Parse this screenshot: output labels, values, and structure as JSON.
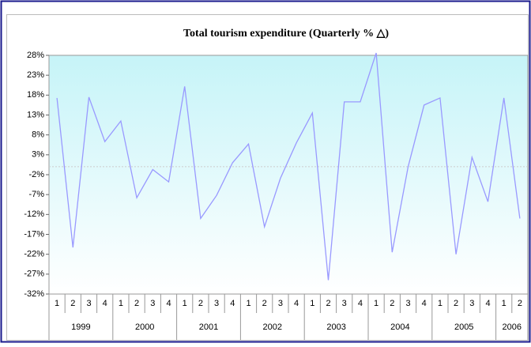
{
  "chart_data": {
    "type": "line",
    "title": "Total tourism expenditure (Quarterly % △)",
    "years": [
      {
        "name": "1999",
        "quarters": [
          "1",
          "2",
          "3",
          "4"
        ]
      },
      {
        "name": "2000",
        "quarters": [
          "1",
          "2",
          "3",
          "4"
        ]
      },
      {
        "name": "2001",
        "quarters": [
          "1",
          "2",
          "3",
          "4"
        ]
      },
      {
        "name": "2002",
        "quarters": [
          "1",
          "2",
          "3",
          "4"
        ]
      },
      {
        "name": "2003",
        "quarters": [
          "1",
          "2",
          "3",
          "4"
        ]
      },
      {
        "name": "2004",
        "quarters": [
          "1",
          "2",
          "3",
          "4"
        ]
      },
      {
        "name": "2005",
        "quarters": [
          "1",
          "2",
          "3",
          "4"
        ]
      },
      {
        "name": "2006",
        "quarters": [
          "1",
          "2"
        ]
      }
    ],
    "values": [
      17.3,
      -20.3,
      17.5,
      6.3,
      11.5,
      -7.8,
      -0.7,
      -3.8,
      20.2,
      -13,
      -7.2,
      1,
      5.7,
      -15.1,
      -2.9,
      6,
      13.5,
      -28.5,
      16.3,
      16.3,
      28.6,
      -21.5,
      0,
      15.5,
      17.3,
      -22,
      2.4,
      -8.8,
      17.3,
      -13
    ],
    "color": "#9999ff",
    "ylim": [
      -32,
      28
    ],
    "yticks": [
      {
        "value": 28,
        "label": "28%"
      },
      {
        "value": 23,
        "label": "23%"
      },
      {
        "value": 18,
        "label": "18%"
      },
      {
        "value": 13,
        "label": "13%"
      },
      {
        "value": 8,
        "label": "8%"
      },
      {
        "value": 3,
        "label": "3%"
      },
      {
        "value": -2,
        "label": "-2%"
      },
      {
        "value": -7,
        "label": "-7%"
      },
      {
        "value": -12,
        "label": "-12%"
      },
      {
        "value": -17,
        "label": "-17%"
      },
      {
        "value": -22,
        "label": "-22%"
      },
      {
        "value": -27,
        "label": "-27%"
      },
      {
        "value": -32,
        "label": "-32%"
      }
    ]
  }
}
